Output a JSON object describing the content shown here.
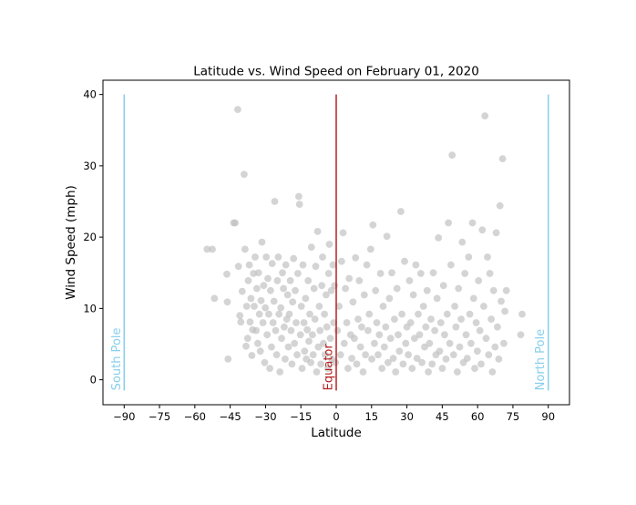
{
  "chart_data": {
    "type": "scatter",
    "title": "Latitude vs. Wind Speed on February 01, 2020",
    "xlabel": "Latitude",
    "ylabel": "Wind Speed (mph)",
    "xlim": [
      -99,
      99
    ],
    "ylim": [
      -3.5,
      42
    ],
    "xticks": [
      -90,
      -75,
      -60,
      -45,
      -30,
      -15,
      0,
      15,
      30,
      45,
      60,
      75,
      90
    ],
    "xtick_labels": [
      "−90",
      "−75",
      "−60",
      "−45",
      "−30",
      "−15",
      "0",
      "15",
      "30",
      "45",
      "60",
      "75",
      "90"
    ],
    "yticks": [
      0,
      10,
      20,
      30,
      40
    ],
    "ytick_labels": [
      "0",
      "10",
      "20",
      "30",
      "40"
    ],
    "grid": false,
    "point_color": "#c0c0c0",
    "vertical_lines": [
      {
        "label": "South Pole",
        "x": -90,
        "y": [
          -1.5,
          40
        ],
        "color": "#87ceeb"
      },
      {
        "label": "Equator",
        "x": 0,
        "y": [
          -1.5,
          40
        ],
        "color": "#b22222"
      },
      {
        "label": "North Pole",
        "x": 90,
        "y": [
          -1.5,
          40
        ],
        "color": "#87ceeb"
      }
    ],
    "points": [
      [
        -54.8,
        18.3
      ],
      [
        -52.6,
        18.3
      ],
      [
        -51.7,
        11.4
      ],
      [
        -46.4,
        14.8
      ],
      [
        -46.2,
        10.9
      ],
      [
        -45.9,
        2.9
      ],
      [
        -43.5,
        22.0
      ],
      [
        -42.9,
        22.0
      ],
      [
        -41.8,
        37.9
      ],
      [
        -41.5,
        15.9
      ],
      [
        -40.9,
        9.0
      ],
      [
        -40.5,
        8.1
      ],
      [
        -39.9,
        12.4
      ],
      [
        -39.1,
        28.8
      ],
      [
        -38.7,
        18.3
      ],
      [
        -38.3,
        4.7
      ],
      [
        -38.0,
        10.3
      ],
      [
        -37.6,
        5.8
      ],
      [
        -37.3,
        13.9
      ],
      [
        -36.9,
        16.1
      ],
      [
        -36.6,
        8.1
      ],
      [
        -36.2,
        11.4
      ],
      [
        -35.8,
        3.4
      ],
      [
        -35.5,
        7.0
      ],
      [
        -35.1,
        14.9
      ],
      [
        -34.8,
        10.3
      ],
      [
        -34.4,
        17.2
      ],
      [
        -34.0,
        6.9
      ],
      [
        -33.7,
        12.8
      ],
      [
        -33.3,
        5.1
      ],
      [
        -33.0,
        15.0
      ],
      [
        -32.6,
        9.2
      ],
      [
        -32.2,
        4.0
      ],
      [
        -31.9,
        11.1
      ],
      [
        -31.5,
        19.3
      ],
      [
        -31.1,
        8.0
      ],
      [
        -30.8,
        13.2
      ],
      [
        -30.4,
        2.4
      ],
      [
        -30.1,
        10.1
      ],
      [
        -29.7,
        17.2
      ],
      [
        -29.3,
        6.3
      ],
      [
        -29.0,
        14.2
      ],
      [
        -28.6,
        9.2
      ],
      [
        -28.2,
        1.6
      ],
      [
        -27.9,
        12.5
      ],
      [
        -27.5,
        4.6
      ],
      [
        -27.2,
        16.3
      ],
      [
        -26.8,
        8.0
      ],
      [
        -26.4,
        11.0
      ],
      [
        -26.1,
        25.0
      ],
      [
        -25.7,
        6.9
      ],
      [
        -25.3,
        3.5
      ],
      [
        -25.0,
        13.9
      ],
      [
        -24.6,
        17.2
      ],
      [
        -24.3,
        9.2
      ],
      [
        -23.9,
        1.1
      ],
      [
        -23.5,
        10.1
      ],
      [
        -23.2,
        5.8
      ],
      [
        -22.8,
        15.0
      ],
      [
        -22.4,
        12.8
      ],
      [
        -22.1,
        7.4
      ],
      [
        -21.7,
        2.9
      ],
      [
        -21.4,
        16.1
      ],
      [
        -21.0,
        8.5
      ],
      [
        -20.6,
        11.9
      ],
      [
        -20.3,
        4.6
      ],
      [
        -19.9,
        9.2
      ],
      [
        -19.5,
        13.9
      ],
      [
        -19.2,
        6.9
      ],
      [
        -18.8,
        2.2
      ],
      [
        -18.5,
        10.9
      ],
      [
        -18.1,
        17.0
      ],
      [
        -17.7,
        5.1
      ],
      [
        -17.4,
        12.5
      ],
      [
        -17.0,
        8.0
      ],
      [
        -16.6,
        3.5
      ],
      [
        -16.3,
        14.9
      ],
      [
        -15.9,
        25.7
      ],
      [
        -15.6,
        24.6
      ],
      [
        -15.2,
        6.3
      ],
      [
        -14.8,
        10.3
      ],
      [
        -14.5,
        1.6
      ],
      [
        -14.1,
        16.1
      ],
      [
        -13.7,
        8.0
      ],
      [
        -13.4,
        4.0
      ],
      [
        -13.0,
        11.4
      ],
      [
        -12.7,
        2.9
      ],
      [
        -12.3,
        7.0
      ],
      [
        -11.9,
        13.9
      ],
      [
        -11.6,
        5.4
      ],
      [
        -11.2,
        9.2
      ],
      [
        -10.8,
        2.4
      ],
      [
        -10.5,
        18.6
      ],
      [
        -10.1,
        6.3
      ],
      [
        -9.8,
        3.5
      ],
      [
        -9.4,
        12.8
      ],
      [
        -9.0,
        8.5
      ],
      [
        -8.7,
        15.9
      ],
      [
        -8.3,
        1.1
      ],
      [
        -7.9,
        20.8
      ],
      [
        -7.6,
        4.6
      ],
      [
        -7.2,
        10.3
      ],
      [
        -6.9,
        6.9
      ],
      [
        -6.5,
        2.2
      ],
      [
        -6.1,
        13.2
      ],
      [
        -5.8,
        17.2
      ],
      [
        -5.4,
        5.1
      ],
      [
        -5.0,
        9.2
      ],
      [
        -4.7,
        3.5
      ],
      [
        -4.3,
        11.9
      ],
      [
        -4.0,
        7.4
      ],
      [
        -3.6,
        1.6
      ],
      [
        -3.2,
        14.9
      ],
      [
        -2.9,
        19.0
      ],
      [
        -2.5,
        5.8
      ],
      [
        -2.1,
        12.5
      ],
      [
        -1.8,
        2.9
      ],
      [
        -1.4,
        16.1
      ],
      [
        -1.1,
        8.0
      ],
      [
        -0.7,
        13.2
      ],
      [
        -0.3,
        2.4
      ],
      [
        0.5,
        6.9
      ],
      [
        1.2,
        10.3
      ],
      [
        1.8,
        3.5
      ],
      [
        2.3,
        16.6
      ],
      [
        2.9,
        20.6
      ],
      [
        3.4,
        5.1
      ],
      [
        3.9,
        12.8
      ],
      [
        4.5,
        8.0
      ],
      [
        5.0,
        1.6
      ],
      [
        5.5,
        14.2
      ],
      [
        6.1,
        6.3
      ],
      [
        6.6,
        3.0
      ],
      [
        7.1,
        10.9
      ],
      [
        7.7,
        5.8
      ],
      [
        8.2,
        17.1
      ],
      [
        8.7,
        2.2
      ],
      [
        9.3,
        8.5
      ],
      [
        9.8,
        13.9
      ],
      [
        10.3,
        4.6
      ],
      [
        10.8,
        7.4
      ],
      [
        11.4,
        1.1
      ],
      [
        11.9,
        11.9
      ],
      [
        12.4,
        3.5
      ],
      [
        13.0,
        16.1
      ],
      [
        13.5,
        6.9
      ],
      [
        14.0,
        9.2
      ],
      [
        14.6,
        18.3
      ],
      [
        15.1,
        2.9
      ],
      [
        15.6,
        21.7
      ],
      [
        16.2,
        5.1
      ],
      [
        16.7,
        12.5
      ],
      [
        17.2,
        8.0
      ],
      [
        17.8,
        3.5
      ],
      [
        18.3,
        6.3
      ],
      [
        18.8,
        14.9
      ],
      [
        19.4,
        1.6
      ],
      [
        19.9,
        10.3
      ],
      [
        20.4,
        4.6
      ],
      [
        21.0,
        7.4
      ],
      [
        21.5,
        20.1
      ],
      [
        22.0,
        2.4
      ],
      [
        22.6,
        11.4
      ],
      [
        23.1,
        5.8
      ],
      [
        23.6,
        15.0
      ],
      [
        24.2,
        3.0
      ],
      [
        24.7,
        8.5
      ],
      [
        25.2,
        1.1
      ],
      [
        25.8,
        12.8
      ],
      [
        26.3,
        6.3
      ],
      [
        26.8,
        4.0
      ],
      [
        27.4,
        23.6
      ],
      [
        27.9,
        9.2
      ],
      [
        28.4,
        2.2
      ],
      [
        29.0,
        16.6
      ],
      [
        29.5,
        5.1
      ],
      [
        30.0,
        7.4
      ],
      [
        30.6,
        3.5
      ],
      [
        31.1,
        13.9
      ],
      [
        31.6,
        8.0
      ],
      [
        32.2,
        1.6
      ],
      [
        32.7,
        11.9
      ],
      [
        33.2,
        5.8
      ],
      [
        33.8,
        16.1
      ],
      [
        34.3,
        3.0
      ],
      [
        34.8,
        9.2
      ],
      [
        35.4,
        6.3
      ],
      [
        35.9,
        14.9
      ],
      [
        36.4,
        2.4
      ],
      [
        37.0,
        10.3
      ],
      [
        37.5,
        4.6
      ],
      [
        38.0,
        7.4
      ],
      [
        38.6,
        12.5
      ],
      [
        39.1,
        1.1
      ],
      [
        39.6,
        5.1
      ],
      [
        40.2,
        8.5
      ],
      [
        40.7,
        2.2
      ],
      [
        41.2,
        15.0
      ],
      [
        41.8,
        6.9
      ],
      [
        42.3,
        3.5
      ],
      [
        42.8,
        11.4
      ],
      [
        43.4,
        19.9
      ],
      [
        43.9,
        4.0
      ],
      [
        44.4,
        8.0
      ],
      [
        45.0,
        1.6
      ],
      [
        45.5,
        13.2
      ],
      [
        46.0,
        6.3
      ],
      [
        46.6,
        2.9
      ],
      [
        47.1,
        9.2
      ],
      [
        47.6,
        22.0
      ],
      [
        48.2,
        5.1
      ],
      [
        48.7,
        16.1
      ],
      [
        49.2,
        31.5
      ],
      [
        49.8,
        3.5
      ],
      [
        50.3,
        10.3
      ],
      [
        50.8,
        7.4
      ],
      [
        51.4,
        1.1
      ],
      [
        51.9,
        12.8
      ],
      [
        52.4,
        4.6
      ],
      [
        53.0,
        8.5
      ],
      [
        53.5,
        19.3
      ],
      [
        54.0,
        2.4
      ],
      [
        54.6,
        14.9
      ],
      [
        55.1,
        6.3
      ],
      [
        55.6,
        3.0
      ],
      [
        56.2,
        17.2
      ],
      [
        56.7,
        9.2
      ],
      [
        57.2,
        5.1
      ],
      [
        57.8,
        22.0
      ],
      [
        58.3,
        11.4
      ],
      [
        58.8,
        1.6
      ],
      [
        59.4,
        8.0
      ],
      [
        59.9,
        4.0
      ],
      [
        60.4,
        13.9
      ],
      [
        61.0,
        6.9
      ],
      [
        61.5,
        2.2
      ],
      [
        62.0,
        21.0
      ],
      [
        62.6,
        10.3
      ],
      [
        63.1,
        37.0
      ],
      [
        63.6,
        5.8
      ],
      [
        64.2,
        17.2
      ],
      [
        64.7,
        3.5
      ],
      [
        65.2,
        14.9
      ],
      [
        65.8,
        8.5
      ],
      [
        66.3,
        1.1
      ],
      [
        66.8,
        12.5
      ],
      [
        67.4,
        4.6
      ],
      [
        67.9,
        20.6
      ],
      [
        68.4,
        7.4
      ],
      [
        69.0,
        2.9
      ],
      [
        69.5,
        24.4
      ],
      [
        70.0,
        11.0
      ],
      [
        70.6,
        31.0
      ],
      [
        71.1,
        5.1
      ],
      [
        71.6,
        9.6
      ],
      [
        72.2,
        12.5
      ],
      [
        78.3,
        6.3
      ],
      [
        78.9,
        9.2
      ]
    ]
  }
}
